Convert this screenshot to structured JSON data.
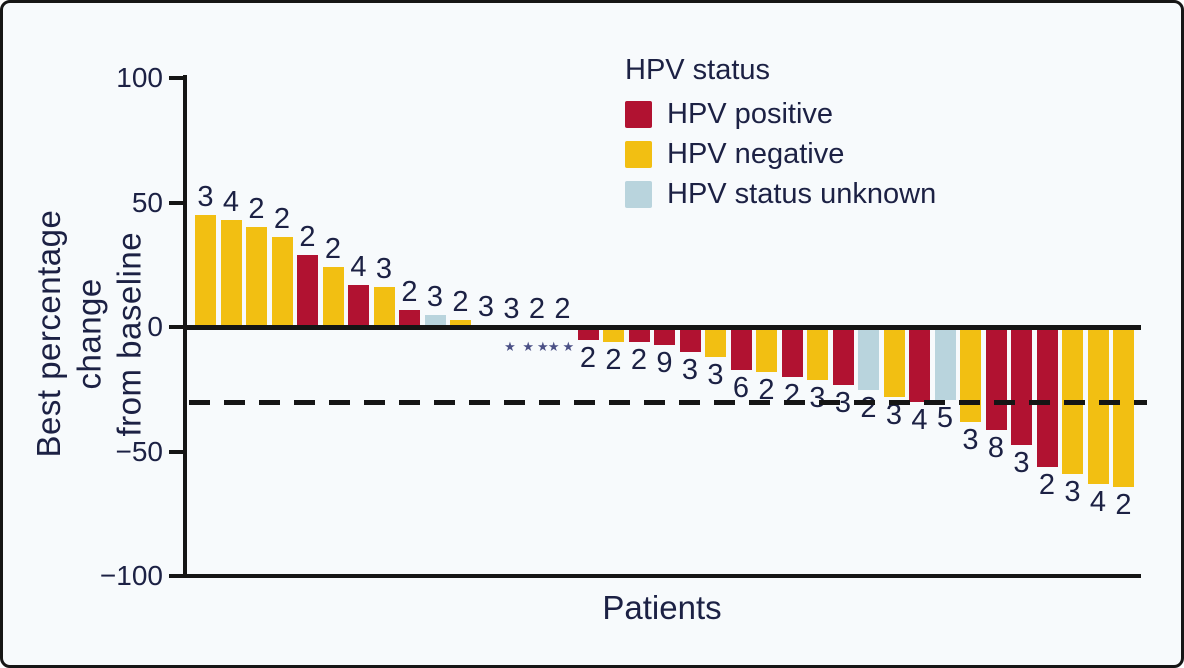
{
  "chart_data": {
    "type": "bar",
    "subtype": "waterfall",
    "title": "",
    "ylabel_line1": "Best percentage change",
    "ylabel_line2": "from baseline",
    "xlabel": "Patients",
    "ylim": [
      -100,
      100
    ],
    "yticks": [
      {
        "label": "100",
        "value": 100
      },
      {
        "label": "50",
        "value": 50
      },
      {
        "label": "0",
        "value": 0
      },
      {
        "label": "−50",
        "value": -50
      },
      {
        "label": "−100",
        "value": -100
      }
    ],
    "reference_line": -30,
    "grid": false,
    "colors": {
      "positive": "#b11231",
      "negative": "#f2bf12",
      "unknown": "#b9d4dd"
    },
    "legend": {
      "title": "HPV status",
      "position": "top-center",
      "items": [
        {
          "label": "HPV positive",
          "group": "positive"
        },
        {
          "label": "HPV negative",
          "group": "negative"
        },
        {
          "label": "HPV status unknown",
          "group": "unknown"
        }
      ]
    },
    "bars": [
      {
        "value": 45,
        "count": "3",
        "group": "negative",
        "annotation": ""
      },
      {
        "value": 43,
        "count": "4",
        "group": "negative",
        "annotation": ""
      },
      {
        "value": 40,
        "count": "2",
        "group": "negative",
        "annotation": ""
      },
      {
        "value": 36,
        "count": "2",
        "group": "negative",
        "annotation": ""
      },
      {
        "value": 29,
        "count": "2",
        "group": "positive",
        "annotation": ""
      },
      {
        "value": 24,
        "count": "2",
        "group": "negative",
        "annotation": ""
      },
      {
        "value": 17,
        "count": "4",
        "group": "positive",
        "annotation": ""
      },
      {
        "value": 16,
        "count": "3",
        "group": "negative",
        "annotation": ""
      },
      {
        "value": 7,
        "count": "2",
        "group": "positive",
        "annotation": ""
      },
      {
        "value": 5,
        "count": "3",
        "group": "unknown",
        "annotation": ""
      },
      {
        "value": 3,
        "count": "2",
        "group": "negative",
        "annotation": ""
      },
      {
        "value": 1,
        "count": "3",
        "group": "positive",
        "annotation": ""
      },
      {
        "value": 0,
        "count": "3",
        "group": "none",
        "annotation": "*"
      },
      {
        "value": 0,
        "count": "2",
        "group": "none",
        "annotation": "**"
      },
      {
        "value": 0,
        "count": "2",
        "group": "none",
        "annotation": "**"
      },
      {
        "value": -4,
        "count": "2",
        "group": "positive",
        "annotation": ""
      },
      {
        "value": -5,
        "count": "2",
        "group": "negative",
        "annotation": ""
      },
      {
        "value": -5,
        "count": "2",
        "group": "positive",
        "annotation": ""
      },
      {
        "value": -6,
        "count": "9",
        "group": "positive",
        "annotation": ""
      },
      {
        "value": -9,
        "count": "3",
        "group": "positive",
        "annotation": ""
      },
      {
        "value": -11,
        "count": "3",
        "group": "negative",
        "annotation": ""
      },
      {
        "value": -16,
        "count": "6",
        "group": "positive",
        "annotation": ""
      },
      {
        "value": -17,
        "count": "2",
        "group": "negative",
        "annotation": ""
      },
      {
        "value": -19,
        "count": "2",
        "group": "positive",
        "annotation": ""
      },
      {
        "value": -20,
        "count": "3",
        "group": "negative",
        "annotation": ""
      },
      {
        "value": -22,
        "count": "3",
        "group": "positive",
        "annotation": ""
      },
      {
        "value": -24,
        "count": "2",
        "group": "unknown",
        "annotation": ""
      },
      {
        "value": -27,
        "count": "3",
        "group": "negative",
        "annotation": ""
      },
      {
        "value": -29,
        "count": "4",
        "group": "positive",
        "annotation": ""
      },
      {
        "value": -28,
        "count": "5",
        "group": "unknown",
        "annotation": ""
      },
      {
        "value": -37,
        "count": "3",
        "group": "negative",
        "annotation": ""
      },
      {
        "value": -40,
        "count": "8",
        "group": "positive",
        "annotation": ""
      },
      {
        "value": -46,
        "count": "3",
        "group": "positive",
        "annotation": ""
      },
      {
        "value": -55,
        "count": "2",
        "group": "positive",
        "annotation": ""
      },
      {
        "value": -58,
        "count": "3",
        "group": "negative",
        "annotation": ""
      },
      {
        "value": -62,
        "count": "4",
        "group": "negative",
        "annotation": ""
      },
      {
        "value": -63,
        "count": "2",
        "group": "negative",
        "annotation": ""
      }
    ]
  }
}
